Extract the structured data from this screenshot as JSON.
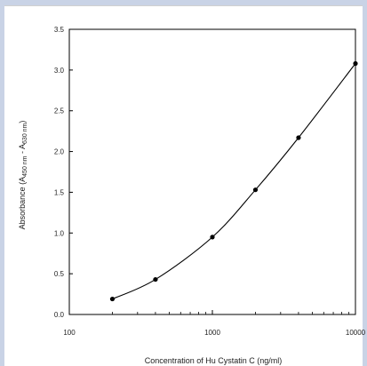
{
  "frame": {
    "accent": "#c9d3e6"
  },
  "chart_data": {
    "type": "line",
    "xscale": "log",
    "xlim": [
      100,
      10000
    ],
    "ylim": [
      0.0,
      3.5
    ],
    "xticks": [
      "100",
      "1000",
      "10000"
    ],
    "yticks": [
      "0.0",
      "0.5",
      "1.0",
      "1.5",
      "2.0",
      "2.5",
      "3.0",
      "3.5"
    ],
    "xlabel": "Concentration of Hu Cystatin C (ng/ml)",
    "ylabel": {
      "prefix": "Absorbance (A",
      "sub1": "450 nm",
      "middle": " - A",
      "sub2": "630 nm",
      "suffix": ")"
    },
    "series": [
      {
        "x": [
          200,
          400,
          1000,
          2000,
          4000,
          10000
        ],
        "y": [
          0.19,
          0.43,
          0.95,
          1.53,
          2.17,
          3.08
        ]
      }
    ],
    "grid": false,
    "colors": {
      "line": "#000000",
      "axis": "#000000"
    }
  }
}
